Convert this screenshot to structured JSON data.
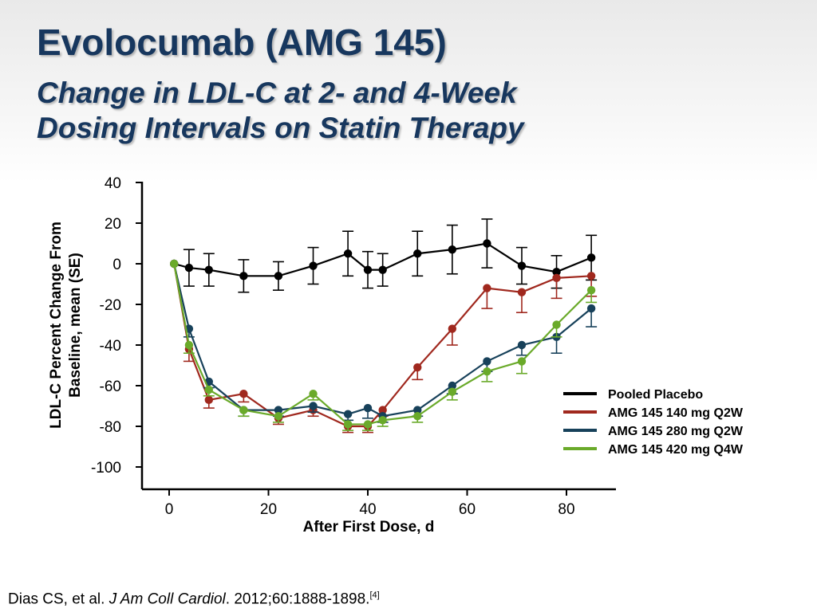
{
  "title": "Evolocumab (AMG 145)",
  "subtitle_lines": [
    "Change in LDL-C at 2- and 4-Week",
    "Dosing Intervals on Statin Therapy"
  ],
  "citation": {
    "authors": "Dias CS, et al.",
    "journal": "J Am Coll Cardiol",
    "details": ". 2012;60:1888-1898.",
    "ref": "[4]"
  },
  "chart_data": {
    "type": "line",
    "xlabel": "After First Dose, d",
    "ylabel_lines": [
      "LDL-C Percent Change From",
      "Baseline, mean (SE)"
    ],
    "xlim": [
      -5,
      90
    ],
    "ylim": [
      -110,
      40
    ],
    "xticks": [
      0,
      20,
      40,
      60,
      80
    ],
    "yticks": [
      40,
      20,
      0,
      -20,
      -40,
      -60,
      -80,
      -100
    ],
    "grid": false,
    "legend_position": "right",
    "series": [
      {
        "name": "Pooled Placebo",
        "color": "#000000",
        "error_dir": "both",
        "x": [
          1,
          4,
          8,
          15,
          22,
          29,
          36,
          40,
          43,
          50,
          57,
          64,
          71,
          78,
          85
        ],
        "y": [
          0,
          -2,
          -3,
          -6,
          -6,
          -1,
          5,
          -3,
          -3,
          5,
          7,
          10,
          -1,
          -4,
          3
        ],
        "err": [
          0,
          9,
          8,
          8,
          7,
          9,
          11,
          9,
          8,
          11,
          12,
          12,
          9,
          8,
          11
        ]
      },
      {
        "name": "AMG 145 140 mg Q2W",
        "color": "#a0281e",
        "error_dir": "down",
        "x": [
          1,
          4,
          8,
          15,
          22,
          29,
          36,
          40,
          43,
          50,
          57,
          64,
          71,
          78,
          85
        ],
        "y": [
          0,
          -42,
          -67,
          -64,
          -76,
          -72,
          -80,
          -80,
          -72,
          -51,
          -32,
          -12,
          -14,
          -7,
          -6
        ],
        "err": [
          0,
          6,
          4,
          4,
          3,
          3,
          3,
          3,
          3,
          6,
          8,
          10,
          10,
          10,
          10
        ]
      },
      {
        "name": "AMG 145 280 mg Q2W",
        "color": "#17415a",
        "error_dir": "down",
        "x": [
          1,
          4,
          8,
          15,
          22,
          29,
          36,
          40,
          43,
          50,
          57,
          64,
          71,
          78,
          85
        ],
        "y": [
          0,
          -32,
          -58,
          -72,
          -72,
          -70,
          -74,
          -71,
          -75,
          -72,
          -60,
          -48,
          -40,
          -36,
          -22
        ],
        "err": [
          0,
          4,
          3,
          3,
          3,
          3,
          3,
          5,
          3,
          3,
          4,
          5,
          5,
          8,
          9
        ]
      },
      {
        "name": "AMG 145 420 mg Q4W",
        "color": "#6aaa2a",
        "error_dir": "down",
        "x": [
          1,
          4,
          8,
          15,
          22,
          29,
          36,
          40,
          43,
          50,
          57,
          64,
          71,
          78,
          85
        ],
        "y": [
          0,
          -40,
          -62,
          -72,
          -75,
          -64,
          -79,
          -79,
          -77,
          -75,
          -63,
          -53,
          -48,
          -30,
          -13
        ],
        "err": [
          0,
          4,
          3,
          3,
          3,
          3,
          3,
          3,
          3,
          3,
          4,
          5,
          6,
          6,
          6
        ]
      }
    ]
  }
}
